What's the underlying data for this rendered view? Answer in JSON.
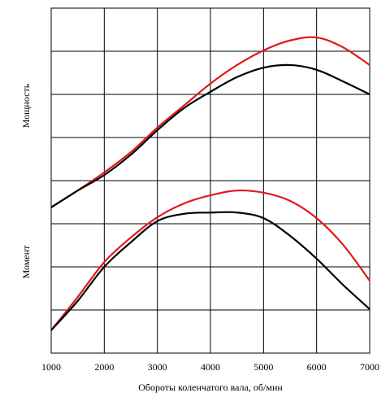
{
  "chart_data": {
    "type": "line",
    "xlabel": "Обороты коленчатого вала, об/мин",
    "ylabel_upper": "Мощность",
    "ylabel_lower": "Момент",
    "x": [
      1000,
      1500,
      2000,
      2500,
      3000,
      3500,
      4000,
      4500,
      5000,
      5500,
      6000,
      6500,
      7000
    ],
    "xlim": [
      1000,
      7000
    ],
    "xticks": [
      1000,
      2000,
      3000,
      4000,
      5000,
      6000,
      7000
    ],
    "ylim": [
      0,
      8
    ],
    "ygrid": [
      1,
      2,
      3,
      4,
      5,
      6,
      7
    ],
    "grid": true,
    "series": [
      {
        "color": "#e0191c",
        "values": [
          3.38,
          3.77,
          4.19,
          4.66,
          5.23,
          5.74,
          6.25,
          6.68,
          7.02,
          7.25,
          7.32,
          7.09,
          6.68
        ]
      },
      {
        "color": "#000000",
        "values": [
          3.38,
          3.77,
          4.13,
          4.6,
          5.17,
          5.68,
          6.06,
          6.4,
          6.62,
          6.68,
          6.57,
          6.3,
          6.0
        ]
      },
      {
        "color": "#e0191c",
        "values": [
          0.53,
          1.3,
          2.11,
          2.68,
          3.15,
          3.47,
          3.66,
          3.77,
          3.72,
          3.53,
          3.13,
          2.51,
          1.68
        ]
      },
      {
        "color": "#000000",
        "values": [
          0.53,
          1.21,
          2.0,
          2.57,
          3.06,
          3.23,
          3.26,
          3.26,
          3.13,
          2.72,
          2.19,
          1.58,
          1.02
        ]
      }
    ]
  }
}
